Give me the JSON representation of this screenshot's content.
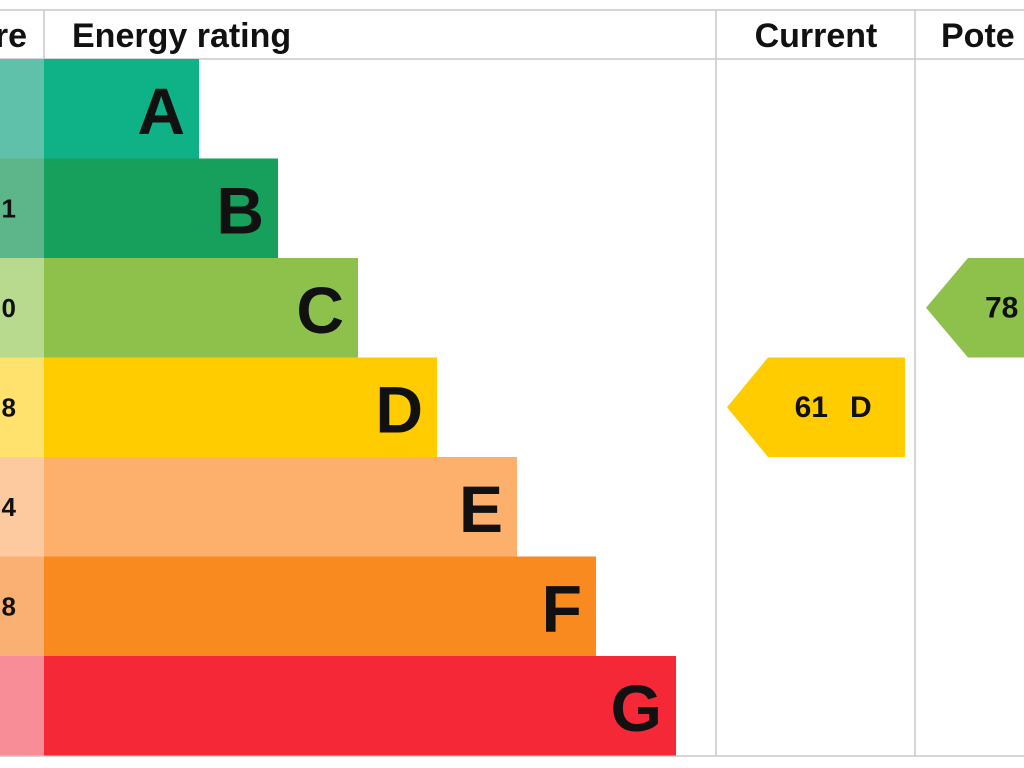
{
  "header": {
    "score": "re",
    "rating": "Energy rating",
    "current": "Current",
    "potential": "Pote"
  },
  "rows": [
    {
      "letter": "A",
      "color": "#0fb187",
      "tint": "#5fc1aa"
    },
    {
      "score": "1",
      "letter": "B",
      "color": "#16a05c",
      "tint": "#5db58a"
    },
    {
      "score": "0",
      "letter": "C",
      "color": "#8dc14b",
      "tint": "#b8da8e"
    },
    {
      "score": "8",
      "letter": "D",
      "color": "#ffcc00",
      "tint": "#ffe16e"
    },
    {
      "score": "4",
      "letter": "E",
      "color": "#fdb06b",
      "tint": "#fdcaa0"
    },
    {
      "score": "8",
      "letter": "F",
      "color": "#f98a1f",
      "tint": "#fbb073"
    },
    {
      "letter": "G",
      "color": "#f42837",
      "tint": "#f88c97"
    }
  ],
  "current": {
    "value": 61,
    "band": "D"
  },
  "potential": {
    "value": 78
  }
}
